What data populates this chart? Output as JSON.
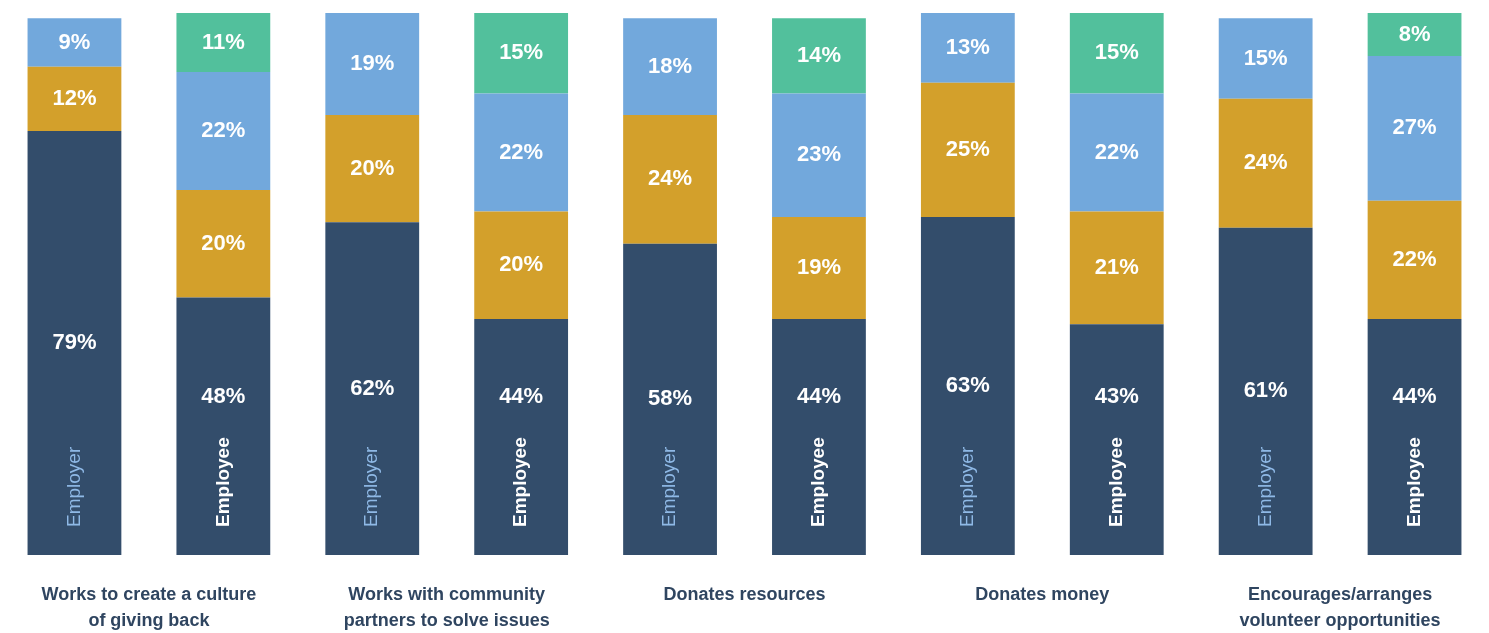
{
  "chart_data": {
    "type": "bar",
    "stacked": true,
    "legend": false,
    "categories": [
      "Employer",
      "Employee",
      "Employer",
      "Employee",
      "Employer",
      "Employee",
      "Employer",
      "Employee",
      "Employer",
      "Employee"
    ],
    "series": [
      {
        "color": "#334d6b",
        "values": [
          79,
          48,
          62,
          44,
          58,
          44,
          63,
          43,
          61,
          44
        ],
        "value_labels": [
          "79%",
          "48%",
          "62%",
          "44%",
          "58%",
          "44%",
          "63%",
          "43%",
          "61%",
          "44%"
        ]
      },
      {
        "color": "#d3a02b",
        "values": [
          12,
          20,
          20,
          20,
          24,
          19,
          25,
          21,
          24,
          22
        ],
        "value_labels": [
          "12%",
          "20%",
          "20%",
          "20%",
          "24%",
          "19%",
          "25%",
          "21%",
          "24%",
          "22%"
        ]
      },
      {
        "color": "#72a8dc",
        "values": [
          9,
          22,
          19,
          22,
          18,
          23,
          13,
          22,
          15,
          27
        ],
        "value_labels": [
          "9%",
          "22%",
          "19%",
          "22%",
          "18%",
          "23%",
          "13%",
          "22%",
          "15%",
          "27%"
        ]
      },
      {
        "color": "#52c09c",
        "values": [
          null,
          11,
          null,
          15,
          null,
          14,
          null,
          15,
          null,
          8
        ],
        "value_labels": [
          null,
          "11%",
          null,
          "15%",
          null,
          "14%",
          null,
          "15%",
          null,
          "8%"
        ]
      }
    ],
    "annotations": [
      "Works to create a culture of giving back",
      "Works with community partners to solve issues",
      "Donates resources",
      "Donates money",
      "Encourages/arranges volunteer opportunities"
    ]
  }
}
